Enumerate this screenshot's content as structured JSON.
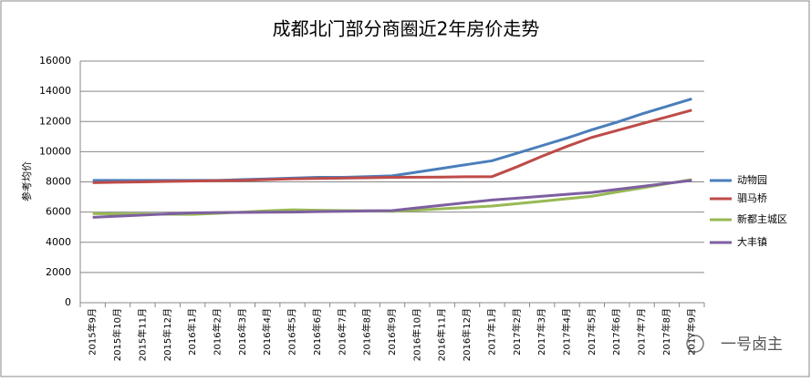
{
  "chart_data": {
    "type": "line",
    "title": "成都北门部分商圈近2年房价走势",
    "y_label": "参考均价",
    "watermark": "一号卤主",
    "categories": [
      "2015年9月",
      "2015年10月",
      "2015年11月",
      "2015年12月",
      "2016年1月",
      "2016年2月",
      "2016年3月",
      "2016年4月",
      "2016年5月",
      "2016年6月",
      "2016年7月",
      "2016年8月",
      "2016年9月",
      "2016年10月",
      "2016年11月",
      "2016年12月",
      "2017年1月",
      "2017年2月",
      "2017年3月",
      "2017年4月",
      "2017年5月",
      "2017年6月",
      "2017年7月",
      "2017年8月",
      "2017年9月"
    ],
    "series": [
      {
        "name": "动物园",
        "color": "#4a7ebb",
        "values": [
          8100,
          8100,
          8100,
          8100,
          8100,
          8100,
          8150,
          8200,
          8250,
          8300,
          8300,
          8350,
          8400,
          8650,
          8900,
          9150,
          9400,
          9900,
          10400,
          10900,
          11450,
          11950,
          12500,
          13000,
          13500
        ]
      },
      {
        "name": "驷马桥",
        "color": "#be4b48",
        "values": [
          7950,
          7980,
          8000,
          8030,
          8050,
          8080,
          8100,
          8150,
          8200,
          8230,
          8250,
          8270,
          8300,
          8310,
          8320,
          8340,
          8350,
          9000,
          9700,
          10350,
          10950,
          11400,
          11850,
          12300,
          12750
        ]
      },
      {
        "name": "新都主城区",
        "color": "#98b954",
        "values": [
          5900,
          5880,
          5870,
          5860,
          5850,
          5920,
          6000,
          6080,
          6150,
          6120,
          6100,
          6080,
          6050,
          6130,
          6220,
          6310,
          6400,
          6560,
          6720,
          6880,
          7050,
          7330,
          7600,
          7880,
          8150
        ]
      },
      {
        "name": "大丰镇",
        "color": "#7d5fa0",
        "values": [
          5650,
          5730,
          5800,
          5880,
          5950,
          5970,
          5980,
          5990,
          6000,
          6030,
          6050,
          6080,
          6100,
          6280,
          6450,
          6630,
          6800,
          6920,
          7050,
          7180,
          7300,
          7500,
          7700,
          7900,
          8100
        ]
      }
    ],
    "ylim": [
      0,
      16000
    ],
    "yticks": [
      0,
      2000,
      4000,
      6000,
      8000,
      10000,
      12000,
      14000,
      16000
    ],
    "grid": true
  }
}
